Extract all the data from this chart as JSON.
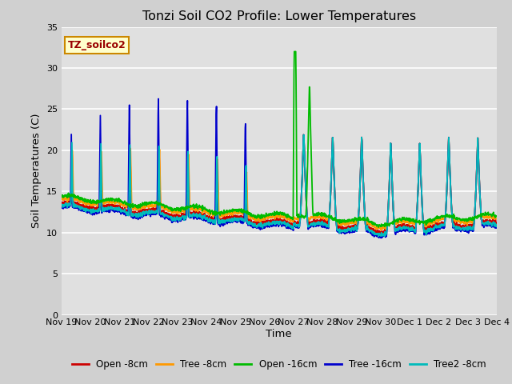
{
  "title": "Tonzi Soil CO2 Profile: Lower Temperatures",
  "xlabel": "Time",
  "ylabel": "Soil Temperatures (C)",
  "ylim": [
    0,
    35
  ],
  "yticks": [
    0,
    5,
    10,
    15,
    20,
    25,
    30,
    35
  ],
  "bg_color": "#e0e0e0",
  "legend_label": "TZ_soilco2",
  "series_labels": [
    "Open -8cm",
    "Tree -8cm",
    "Open -16cm",
    "Tree -16cm",
    "Tree2 -8cm"
  ],
  "series_colors": [
    "#cc0000",
    "#ff9900",
    "#00bb00",
    "#0000cc",
    "#00bbbb"
  ],
  "line_width": 1.3,
  "x_tick_labels": [
    "Nov 19",
    "Nov 20",
    "Nov 21",
    "Nov 22",
    "Nov 23",
    "Nov 24",
    "Nov 25",
    "Nov 26",
    "Nov 27",
    "Nov 28",
    "Nov 29",
    "Nov 30",
    "Dec 1",
    "Dec 2",
    "Dec 3",
    "Dec 4"
  ]
}
